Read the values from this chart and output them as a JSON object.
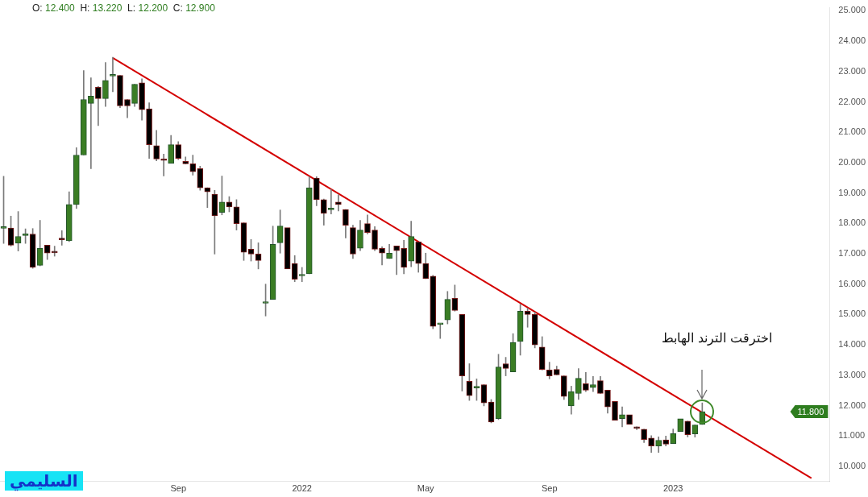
{
  "chart_data": {
    "type": "candlestick",
    "title": "O: 12.400  H: 13.220  L: 12.200  C: 12.900",
    "categories": [
      null,
      null,
      null,
      null,
      null,
      null,
      null,
      null,
      null,
      null,
      null,
      null,
      null,
      null,
      null,
      null,
      null,
      null,
      null,
      null,
      null,
      null,
      null,
      null,
      "Sep",
      null,
      null,
      null,
      null,
      null,
      null,
      null,
      null,
      null,
      null,
      null,
      null,
      null,
      null,
      null,
      null,
      "2022",
      null,
      null,
      null,
      null,
      null,
      null,
      null,
      null,
      null,
      null,
      null,
      null,
      null,
      null,
      null,
      null,
      "May",
      null,
      null,
      null,
      null,
      null,
      null,
      null,
      null,
      null,
      null,
      null,
      null,
      null,
      null,
      null,
      null,
      "Sep",
      null,
      null,
      null,
      null,
      null,
      null,
      null,
      null,
      null,
      null,
      null,
      null,
      null,
      null,
      null,
      null,
      "2023",
      null,
      null,
      null,
      null,
      null,
      null,
      null,
      null,
      null,
      null,
      null,
      null,
      null,
      null,
      null,
      null,
      null,
      null,
      null,
      null,
      null
    ],
    "ohlc": [
      [
        17.84,
        19.55,
        17.34,
        17.86
      ],
      [
        17.85,
        18.24,
        17.25,
        17.28
      ],
      [
        17.35,
        18.39,
        17.09,
        17.57
      ],
      [
        17.6,
        17.82,
        17.34,
        17.62
      ],
      [
        17.65,
        17.83,
        16.52,
        16.55
      ],
      [
        16.62,
        18.1,
        16.6,
        17.18
      ],
      [
        17.28,
        17.28,
        16.81,
        17.02
      ],
      [
        17.05,
        17.25,
        16.92,
        17.03
      ],
      [
        17.48,
        17.76,
        17.28,
        17.46
      ],
      [
        17.43,
        19.04,
        17.4,
        18.62
      ],
      [
        18.62,
        20.49,
        18.49,
        20.25
      ],
      [
        20.25,
        23.03,
        20.25,
        22.08
      ],
      [
        21.95,
        22.79,
        19.8,
        22.19
      ],
      [
        22.48,
        22.51,
        21.22,
        22.11
      ],
      [
        22.11,
        23.3,
        21.85,
        22.71
      ],
      [
        22.85,
        23.47,
        22.33,
        22.87
      ],
      [
        22.87,
        22.87,
        21.81,
        21.87
      ],
      [
        22.08,
        22.08,
        21.48,
        21.87
      ],
      [
        21.95,
        22.58,
        21.85,
        22.58
      ],
      [
        22.63,
        22.76,
        21.4,
        21.74
      ],
      [
        21.77,
        21.97,
        20.14,
        20.59
      ],
      [
        20.56,
        21.06,
        20.06,
        20.12
      ],
      [
        20.09,
        20.28,
        19.56,
        20.07
      ],
      [
        19.98,
        20.9,
        19.98,
        20.59
      ],
      [
        20.59,
        20.69,
        20.1,
        20.14
      ],
      [
        20.04,
        20.19,
        19.96,
        19.96
      ],
      [
        19.96,
        20.25,
        19.59,
        19.7
      ],
      [
        19.8,
        19.88,
        19.09,
        19.17
      ],
      [
        19.17,
        19.17,
        18.52,
        19.04
      ],
      [
        18.96,
        19.09,
        16.99,
        18.25
      ],
      [
        18.36,
        19.56,
        18.28,
        18.7
      ],
      [
        18.7,
        18.88,
        18.38,
        18.54
      ],
      [
        18.54,
        18.78,
        17.78,
        17.99
      ],
      [
        18.02,
        18.02,
        16.78,
        17.05
      ],
      [
        17.15,
        17.47,
        16.76,
        16.99
      ],
      [
        16.99,
        17.36,
        16.5,
        16.78
      ],
      [
        15.37,
        16.0,
        14.95,
        15.39
      ],
      [
        15.5,
        17.91,
        15.5,
        17.31
      ],
      [
        17.36,
        18.44,
        17.02,
        17.91
      ],
      [
        17.86,
        17.86,
        16.5,
        16.5
      ],
      [
        16.68,
        16.94,
        16.08,
        16.16
      ],
      [
        16.27,
        16.55,
        16.08,
        16.29
      ],
      [
        16.34,
        19.54,
        16.34,
        19.17
      ],
      [
        19.49,
        19.54,
        18.58,
        18.78
      ],
      [
        18.78,
        18.8,
        17.94,
        18.33
      ],
      [
        18.45,
        19.12,
        18.31,
        18.47
      ],
      [
        18.7,
        18.94,
        18.41,
        18.62
      ],
      [
        18.46,
        18.46,
        17.52,
        17.94
      ],
      [
        17.86,
        17.94,
        16.84,
        16.99
      ],
      [
        17.18,
        18.1,
        17.1,
        17.78
      ],
      [
        17.99,
        18.28,
        17.65,
        17.7
      ],
      [
        17.78,
        17.89,
        17.1,
        17.15
      ],
      [
        17.18,
        17.23,
        16.63,
        17.02
      ],
      [
        16.84,
        17.31,
        16.84,
        17.02
      ],
      [
        17.26,
        17.26,
        16.31,
        17.1
      ],
      [
        17.18,
        17.44,
        16.34,
        16.55
      ],
      [
        16.76,
        18.07,
        16.57,
        17.57
      ],
      [
        17.39,
        17.39,
        16.39,
        16.68
      ],
      [
        16.68,
        17.02,
        16.18,
        16.18
      ],
      [
        16.26,
        16.29,
        14.53,
        14.61
      ],
      [
        14.67,
        14.69,
        14.21,
        14.69
      ],
      [
        14.82,
        15.76,
        14.69,
        15.5
      ],
      [
        15.53,
        15.97,
        15.11,
        15.13
      ],
      [
        15.0,
        15.0,
        12.48,
        12.98
      ],
      [
        12.8,
        13.38,
        12.17,
        12.33
      ],
      [
        12.58,
        12.88,
        12.17,
        12.6
      ],
      [
        12.69,
        12.69,
        11.99,
        12.09
      ],
      [
        12.12,
        12.2,
        11.43,
        11.46
      ],
      [
        11.57,
        13.69,
        11.54,
        13.27
      ],
      [
        13.38,
        13.59,
        12.98,
        13.22
      ],
      [
        13.11,
        14.37,
        13.11,
        14.08
      ],
      [
        14.11,
        15.34,
        13.66,
        15.11
      ],
      [
        15.11,
        15.21,
        14.58,
        15.0
      ],
      [
        15.0,
        15.08,
        13.9,
        14.0
      ],
      [
        13.93,
        14.27,
        13.17,
        13.19
      ],
      [
        13.17,
        13.43,
        12.88,
        12.98
      ],
      [
        13.19,
        13.3,
        13.01,
        13.01
      ],
      [
        12.98,
        12.98,
        12.2,
        12.3
      ],
      [
        11.99,
        12.64,
        11.72,
        12.46
      ],
      [
        12.4,
        13.22,
        12.2,
        12.9
      ],
      [
        12.72,
        13.09,
        12.46,
        12.51
      ],
      [
        12.59,
        12.96,
        12.46,
        12.69
      ],
      [
        12.82,
        12.96,
        12.4,
        12.4
      ],
      [
        12.51,
        12.51,
        11.75,
        11.96
      ],
      [
        12.14,
        12.14,
        11.51,
        11.51
      ],
      [
        11.57,
        11.96,
        11.3,
        11.7
      ],
      [
        11.7,
        11.7,
        11.38,
        11.38
      ],
      [
        11.27,
        11.3,
        11.21,
        11.25
      ],
      [
        11.22,
        11.22,
        10.78,
        10.88
      ],
      [
        10.93,
        11.01,
        10.46,
        10.67
      ],
      [
        10.67,
        10.97,
        10.46,
        10.86
      ],
      [
        10.87,
        11.0,
        10.67,
        10.73
      ],
      [
        10.75,
        11.23,
        10.75,
        11.08
      ],
      [
        11.15,
        11.57,
        11.15,
        11.57
      ],
      [
        11.49,
        11.49,
        10.97,
        11.04
      ],
      [
        11.07,
        11.36,
        10.96,
        11.36
      ],
      [
        11.38,
        12.09,
        11.38,
        11.8
      ],
      null,
      null,
      null,
      null,
      null,
      null,
      null,
      null,
      null,
      null,
      null,
      null,
      null,
      null,
      null,
      null,
      null
    ],
    "series": [
      {
        "type": "line",
        "color": "#d40000",
        "values": [
          null,
          null,
          null,
          null,
          null,
          null,
          null,
          null,
          null,
          null,
          null,
          null,
          null,
          null,
          null,
          23.45,
          null,
          null,
          null,
          null,
          null,
          null,
          null,
          null,
          null,
          null,
          null,
          null,
          null,
          null,
          null,
          null,
          null,
          null,
          null,
          null,
          null,
          null,
          null,
          null,
          null,
          null,
          null,
          null,
          null,
          null,
          null,
          null,
          null,
          null,
          null,
          null,
          null,
          null,
          null,
          null,
          null,
          null,
          null,
          null,
          null,
          null,
          null,
          null,
          null,
          null,
          null,
          null,
          null,
          null,
          null,
          null,
          null,
          null,
          null,
          null,
          null,
          null,
          null,
          null,
          null,
          null,
          null,
          null,
          null,
          null,
          null,
          null,
          null,
          null,
          null,
          null,
          null,
          null,
          null,
          null,
          null,
          null,
          null,
          null,
          null,
          null,
          null,
          null,
          null,
          null,
          null,
          null,
          null,
          null,
          null,
          9.61,
          null,
          null
        ]
      }
    ],
    "ylim": [
      9.5,
      25.1
    ],
    "yticks": [
      {
        "value": 10,
        "label": "10.000"
      },
      {
        "value": 11,
        "label": "11.000"
      },
      {
        "value": 12,
        "label": "12.000"
      },
      {
        "value": 13,
        "label": "13.000"
      },
      {
        "value": 14,
        "label": "14.000"
      },
      {
        "value": 15,
        "label": "15.000"
      },
      {
        "value": 16,
        "label": "16.000"
      },
      {
        "value": 17,
        "label": "17.000"
      },
      {
        "value": 18,
        "label": "18.000"
      },
      {
        "value": 19,
        "label": "19.000"
      },
      {
        "value": 20,
        "label": "20.000"
      },
      {
        "value": 21,
        "label": "21.000"
      },
      {
        "value": 22,
        "label": "22.000"
      },
      {
        "value": 23,
        "label": "23.000"
      },
      {
        "value": 24,
        "label": "24.000"
      },
      {
        "value": 25,
        "label": "25.000"
      }
    ],
    "annotations": [
      "اخترقت الترند الهابط",
      "11.800",
      "السليمي"
    ]
  }
}
